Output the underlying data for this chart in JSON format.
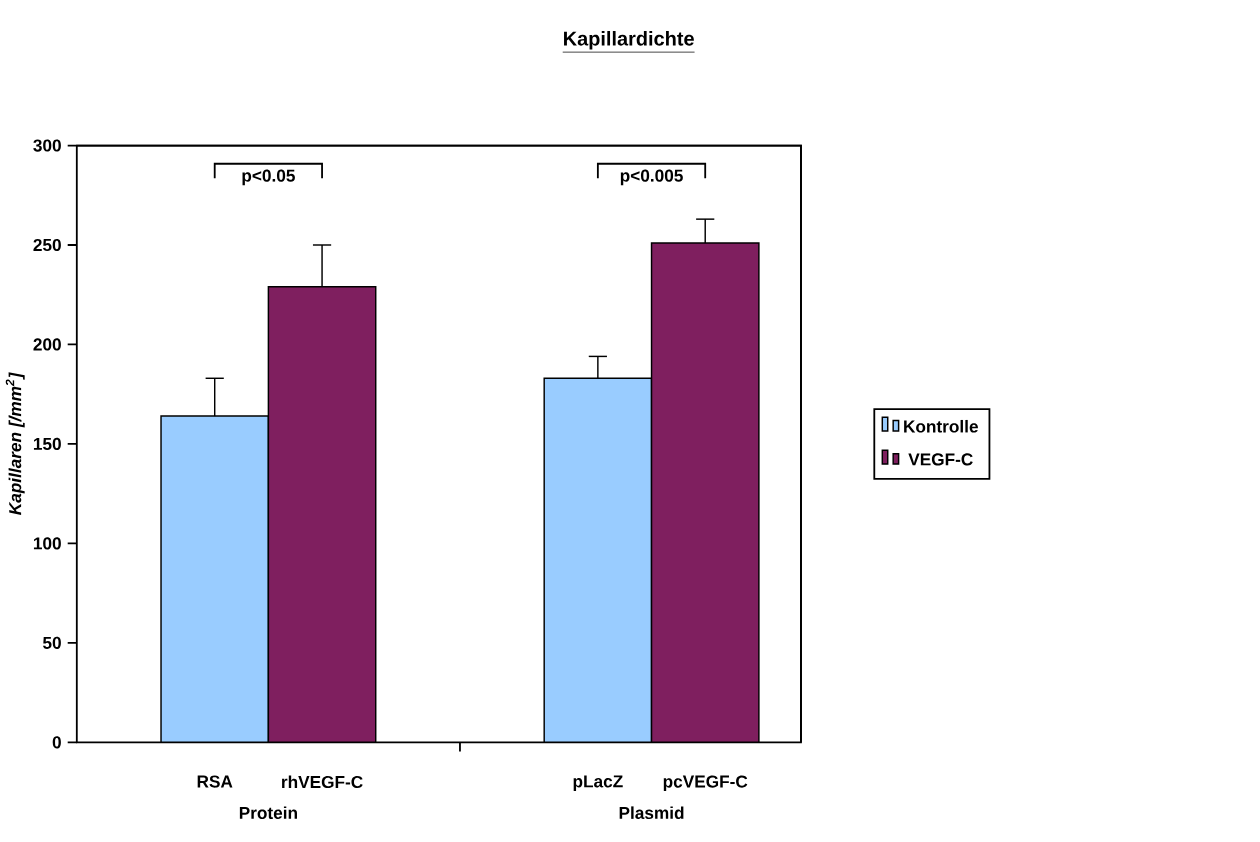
{
  "chart_data": {
    "type": "bar",
    "title": "Kapillardichte",
    "ylabel": "Kapillaren [/mm$^{2}$]",
    "categories": [
      "Protein",
      "Plasmid"
    ],
    "series": [
      {
        "name": "Kontrolle",
        "color": "#99ccff",
        "values": [
          164,
          183
        ],
        "errors": [
          19,
          11
        ]
      },
      {
        "name": "VEGF-C",
        "color": "#7f1f5f",
        "values": [
          229,
          251
        ],
        "errors": [
          21,
          12
        ]
      }
    ],
    "ylim": [
      0,
      300
    ],
    "yticks": [
      0,
      50,
      100,
      150,
      200,
      250,
      300
    ],
    "annotations": [
      "p<0.05",
      "p<0.005",
      "RSA",
      "rhVEGF-C",
      "pLacZ",
      "pcVEGF-C"
    ],
    "legend": "right",
    "grid": false
  }
}
